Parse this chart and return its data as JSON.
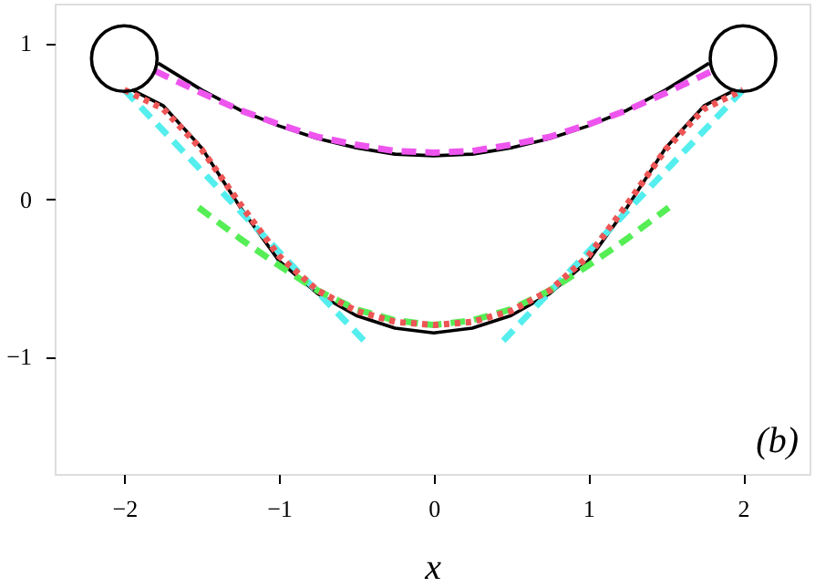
{
  "chart_data": {
    "type": "line",
    "xlabel": "x",
    "xlim": [
      -2.45,
      2.43
    ],
    "ylim": [
      -1.75,
      1.25
    ],
    "xticks": [
      -2,
      -1,
      0,
      1,
      2
    ],
    "yticks": [
      -1,
      0,
      1
    ],
    "grid": false,
    "marker": "none",
    "annotations": [
      "(b)"
    ],
    "series": [
      {
        "color": "#000000",
        "line_style": "solid",
        "x": [
          -1.78,
          -1.5,
          -1.25,
          -1.0,
          -0.75,
          -0.5,
          -0.25,
          0,
          0.25,
          0.5,
          0.75,
          1.0,
          1.25,
          1.5,
          1.78
        ],
        "values": [
          0.87,
          0.7,
          0.57,
          0.47,
          0.39,
          0.33,
          0.29,
          0.28,
          0.29,
          0.33,
          0.39,
          0.47,
          0.57,
          0.7,
          0.87
        ]
      },
      {
        "color": "#ee55ee",
        "line_style": "dashed",
        "x": [
          -1.8,
          -1.5,
          -1.25,
          -1.0,
          -0.75,
          -0.5,
          -0.25,
          0,
          0.25,
          0.5,
          0.75,
          1.0,
          1.25,
          1.5,
          1.8
        ],
        "values": [
          0.82,
          0.68,
          0.57,
          0.48,
          0.4,
          0.35,
          0.31,
          0.3,
          0.31,
          0.35,
          0.4,
          0.48,
          0.57,
          0.68,
          0.82
        ]
      },
      {
        "color": "#000000",
        "line_style": "solid",
        "x": [
          -1.95,
          -1.75,
          -1.5,
          -1.25,
          -1.0,
          -0.75,
          -0.5,
          -0.25,
          0,
          0.25,
          0.5,
          0.75,
          1.0,
          1.25,
          1.5,
          1.75,
          1.95
        ],
        "values": [
          0.7,
          0.6,
          0.33,
          -0.05,
          -0.39,
          -0.6,
          -0.74,
          -0.82,
          -0.85,
          -0.82,
          -0.74,
          -0.6,
          -0.39,
          -0.05,
          0.33,
          0.6,
          0.7
        ]
      },
      {
        "color": "#55eeee",
        "line_style": "dashed",
        "x": [
          -2.0,
          -0.45
        ],
        "values": [
          0.7,
          -0.9
        ]
      },
      {
        "color": "#55eeee",
        "line_style": "dashed",
        "x": [
          0.45,
          2.0
        ],
        "values": [
          -0.9,
          0.7
        ]
      },
      {
        "color": "#55ee55",
        "line_style": "dashed",
        "x": [
          -1.52,
          -1.25,
          -1.0,
          -0.75,
          -0.5,
          -0.25,
          0,
          0.25,
          0.5,
          0.75,
          1.0,
          1.25,
          1.52
        ],
        "values": [
          -0.05,
          -0.25,
          -0.42,
          -0.58,
          -0.7,
          -0.77,
          -0.8,
          -0.77,
          -0.7,
          -0.58,
          -0.42,
          -0.25,
          -0.05
        ]
      },
      {
        "color": "#ee5555",
        "line_style": "dotted",
        "x": [
          -2.0,
          -1.75,
          -1.5,
          -1.25,
          -1.0,
          -0.75,
          -0.5,
          -0.25,
          0,
          0.25,
          0.5,
          0.75,
          1.0,
          1.25,
          1.5,
          1.75,
          2.0
        ],
        "values": [
          0.7,
          0.58,
          0.32,
          -0.03,
          -0.36,
          -0.58,
          -0.71,
          -0.78,
          -0.8,
          -0.78,
          -0.71,
          -0.58,
          -0.36,
          -0.03,
          0.32,
          0.58,
          0.7
        ]
      },
      {
        "type": "scatter",
        "marker": "circle",
        "color": "#000000",
        "x": [
          -2.0,
          2.0
        ],
        "values": [
          0.9,
          0.9
        ]
      }
    ]
  }
}
